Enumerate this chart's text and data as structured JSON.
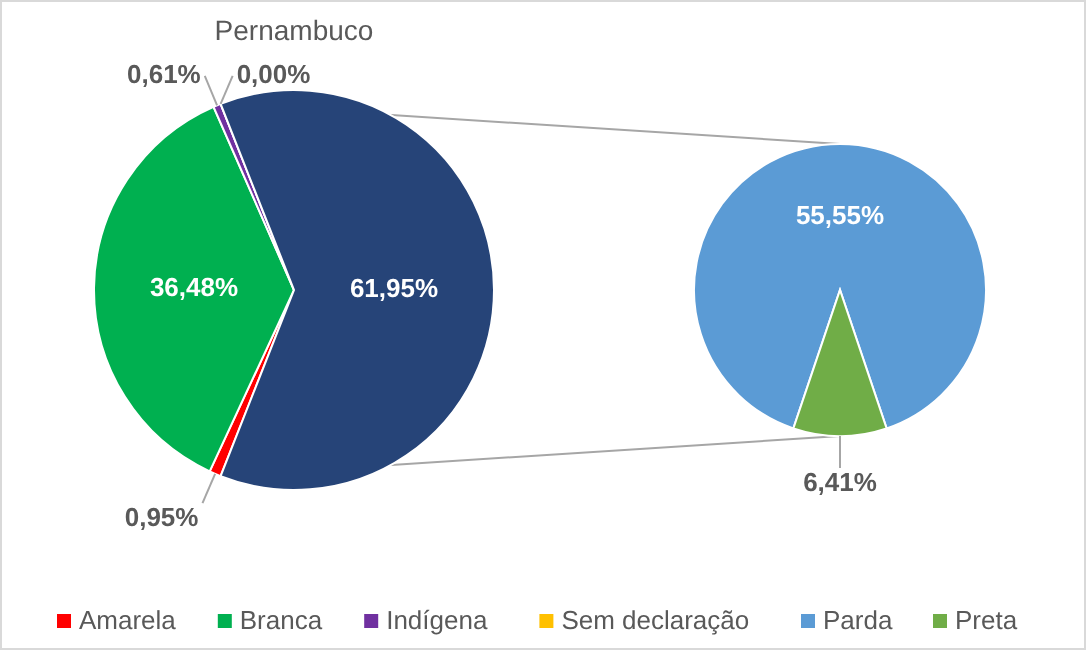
{
  "chart_data": [
    {
      "type": "pie",
      "title": "Pernambuco",
      "categories": [
        "Amarela",
        "Branca",
        "Indígena",
        "Sem declaração",
        null
      ],
      "values": [
        0.95,
        36.48,
        0.61,
        0.0,
        61.95
      ],
      "colors": [
        "#ff0000",
        "#00b050",
        "#7030a0",
        "#ffc000",
        "#264478"
      ],
      "value_labels": [
        "0,95%",
        "36,48%",
        "0,61%",
        "0,00%",
        "61,95%"
      ],
      "legend": "bottom"
    },
    {
      "type": "pie",
      "categories": [
        "Parda",
        "Preta"
      ],
      "values": [
        55.55,
        6.41
      ],
      "colors": [
        "#5b9bd5",
        "#70ad47"
      ],
      "value_labels": [
        "55,55%",
        "6,41%"
      ],
      "legend": "bottom"
    }
  ]
}
